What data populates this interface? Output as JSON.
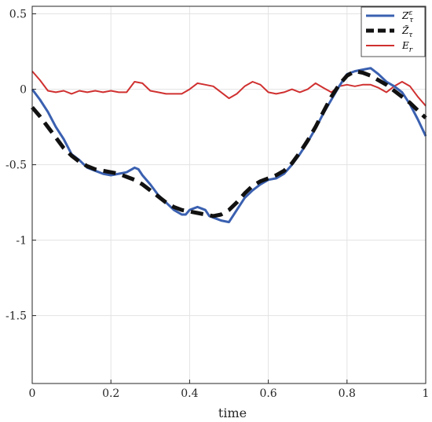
{
  "chart_data": {
    "type": "line",
    "title": "",
    "xlabel": "time",
    "ylabel": "",
    "xlim": [
      0,
      1
    ],
    "ylim": [
      -1.95,
      0.55
    ],
    "xticks": [
      0,
      0.2,
      0.4,
      0.6,
      0.8,
      1
    ],
    "xtick_labels": [
      "0",
      "0.2",
      "0.4",
      "0.6",
      "0.8",
      "1"
    ],
    "yticks": [
      0.5,
      0,
      -0.5,
      -1,
      -1.5
    ],
    "ytick_labels": [
      "0.5",
      "0",
      "-0.5",
      "-1",
      "-1.5"
    ],
    "grid": true,
    "legend_position": "top-right",
    "series": [
      {
        "name": "Z_τ^ε",
        "legend_main": "Z",
        "legend_sub": "τ",
        "legend_sup": "ε",
        "color": "#3a60b0",
        "style": "solid",
        "x": [
          0,
          0.02,
          0.04,
          0.06,
          0.08,
          0.1,
          0.12,
          0.14,
          0.16,
          0.18,
          0.2,
          0.22,
          0.24,
          0.26,
          0.27,
          0.28,
          0.3,
          0.32,
          0.34,
          0.36,
          0.38,
          0.39,
          0.4,
          0.42,
          0.44,
          0.45,
          0.46,
          0.48,
          0.5,
          0.52,
          0.54,
          0.56,
          0.58,
          0.6,
          0.62,
          0.64,
          0.66,
          0.68,
          0.7,
          0.72,
          0.74,
          0.76,
          0.78,
          0.8,
          0.82,
          0.84,
          0.86,
          0.88,
          0.9,
          0.92,
          0.94,
          0.96,
          0.98,
          1.0
        ],
        "y": [
          0.0,
          -0.07,
          -0.15,
          -0.25,
          -0.33,
          -0.43,
          -0.47,
          -0.52,
          -0.54,
          -0.56,
          -0.57,
          -0.56,
          -0.55,
          -0.52,
          -0.53,
          -0.57,
          -0.63,
          -0.7,
          -0.75,
          -0.8,
          -0.83,
          -0.83,
          -0.8,
          -0.78,
          -0.8,
          -0.84,
          -0.85,
          -0.87,
          -0.88,
          -0.8,
          -0.72,
          -0.67,
          -0.63,
          -0.6,
          -0.59,
          -0.56,
          -0.5,
          -0.43,
          -0.35,
          -0.26,
          -0.16,
          -0.07,
          0.02,
          0.1,
          0.12,
          0.13,
          0.14,
          0.1,
          0.05,
          0.02,
          -0.02,
          -0.1,
          -0.2,
          -0.31
        ]
      },
      {
        "name": "Z̃_τ",
        "legend_main": "Z̃",
        "legend_sub": "τ",
        "color": "#111111",
        "style": "dashed",
        "x": [
          0,
          0.02,
          0.04,
          0.06,
          0.08,
          0.1,
          0.12,
          0.14,
          0.16,
          0.18,
          0.2,
          0.22,
          0.24,
          0.26,
          0.28,
          0.3,
          0.32,
          0.34,
          0.36,
          0.38,
          0.4,
          0.42,
          0.44,
          0.46,
          0.48,
          0.5,
          0.52,
          0.54,
          0.56,
          0.58,
          0.6,
          0.62,
          0.64,
          0.66,
          0.68,
          0.7,
          0.72,
          0.74,
          0.76,
          0.78,
          0.8,
          0.82,
          0.84,
          0.86,
          0.88,
          0.9,
          0.92,
          0.94,
          0.96,
          0.98,
          1.0
        ],
        "y": [
          -0.12,
          -0.18,
          -0.25,
          -0.32,
          -0.39,
          -0.44,
          -0.48,
          -0.51,
          -0.53,
          -0.54,
          -0.55,
          -0.56,
          -0.58,
          -0.6,
          -0.63,
          -0.67,
          -0.71,
          -0.75,
          -0.78,
          -0.8,
          -0.81,
          -0.82,
          -0.83,
          -0.84,
          -0.83,
          -0.8,
          -0.75,
          -0.69,
          -0.64,
          -0.61,
          -0.59,
          -0.57,
          -0.54,
          -0.49,
          -0.42,
          -0.34,
          -0.25,
          -0.15,
          -0.05,
          0.03,
          0.09,
          0.12,
          0.11,
          0.09,
          0.06,
          0.03,
          -0.01,
          -0.05,
          -0.09,
          -0.14,
          -0.19
        ]
      },
      {
        "name": "E_r",
        "legend_main": "E",
        "legend_sub": "r",
        "color": "#d03030",
        "style": "solid",
        "x": [
          0,
          0.02,
          0.04,
          0.06,
          0.08,
          0.1,
          0.12,
          0.14,
          0.16,
          0.18,
          0.2,
          0.22,
          0.24,
          0.26,
          0.28,
          0.3,
          0.32,
          0.34,
          0.36,
          0.38,
          0.4,
          0.42,
          0.44,
          0.46,
          0.48,
          0.5,
          0.52,
          0.54,
          0.56,
          0.58,
          0.6,
          0.62,
          0.64,
          0.66,
          0.68,
          0.7,
          0.72,
          0.74,
          0.76,
          0.78,
          0.8,
          0.82,
          0.84,
          0.86,
          0.88,
          0.9,
          0.92,
          0.94,
          0.96,
          0.98,
          1.0
        ],
        "y": [
          0.12,
          0.06,
          -0.01,
          -0.02,
          -0.01,
          -0.03,
          -0.01,
          -0.02,
          -0.01,
          -0.02,
          -0.01,
          -0.02,
          -0.02,
          0.05,
          0.04,
          -0.01,
          -0.02,
          -0.03,
          -0.03,
          -0.03,
          0.0,
          0.04,
          0.03,
          0.02,
          -0.02,
          -0.06,
          -0.03,
          0.02,
          0.05,
          0.03,
          -0.02,
          -0.03,
          -0.02,
          0.0,
          -0.02,
          0.0,
          0.04,
          0.01,
          -0.02,
          0.02,
          0.03,
          0.02,
          0.03,
          0.03,
          0.01,
          -0.02,
          0.02,
          0.05,
          0.02,
          -0.05,
          -0.11
        ]
      }
    ]
  }
}
